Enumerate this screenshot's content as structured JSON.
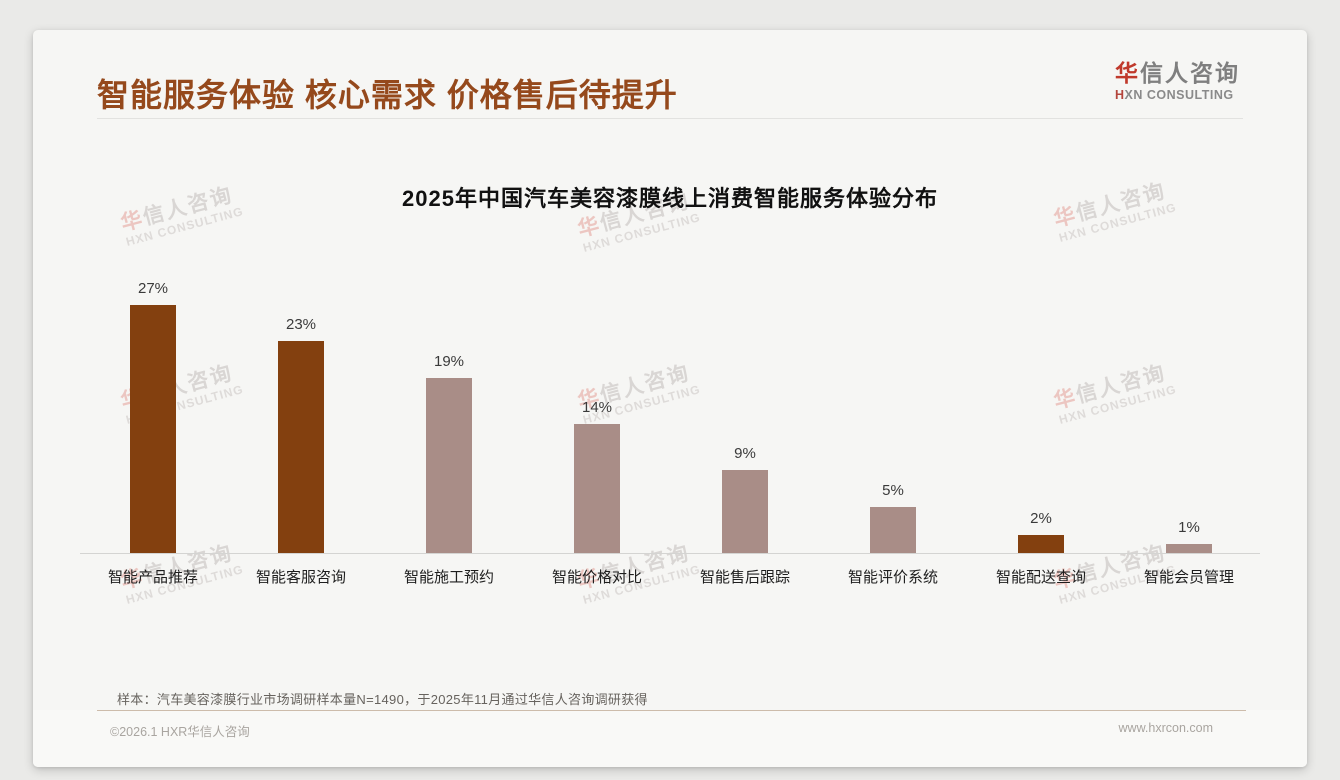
{
  "header": {
    "title": "智能服务体验 核心需求 价格售后待提升"
  },
  "logo": {
    "cn_accent": "华",
    "cn_rest": "信人咨询",
    "en_accent": "H",
    "en_rest": "XN CONSULTING"
  },
  "chart_data": {
    "type": "bar",
    "title": "2025年中国汽车美容漆膜线上消费智能服务体验分布",
    "categories": [
      "智能产品推荐",
      "智能客服咨询",
      "智能施工预约",
      "智能价格对比",
      "智能售后跟踪",
      "智能评价系统",
      "智能配送查询",
      "智能会员管理"
    ],
    "values": [
      27,
      23,
      19,
      14,
      9,
      5,
      2,
      1
    ],
    "value_labels": [
      "27%",
      "23%",
      "19%",
      "14%",
      "9%",
      "5%",
      "2%",
      "1%"
    ],
    "bar_colors": [
      "#83400F",
      "#83400F",
      "#A98D87",
      "#A98D87",
      "#A98D87",
      "#A98D87",
      "#83400F",
      "#A98D87"
    ],
    "xlabel": "",
    "ylabel": "",
    "ylim": [
      0,
      30
    ],
    "grid": false,
    "legend_position": "none"
  },
  "watermark": {
    "line1_accent": "华",
    "line1_rest": "信人咨询",
    "line2": "HXN CONSULTING"
  },
  "footnote": "样本：汽车美容漆膜行业市场调研样本量N=1490，于2025年11月通过华信人咨询调研获得",
  "footer": {
    "copyright": "©2026.1 HXR华信人咨询",
    "website": "www.hxrcon.com"
  },
  "colors": {
    "bar_dark": "#83400F",
    "bar_light": "#A98D87",
    "title_brown": "#95491C",
    "logo_red": "#C0392B",
    "background": "#EAEAE8",
    "card": "#F6F6F4"
  }
}
